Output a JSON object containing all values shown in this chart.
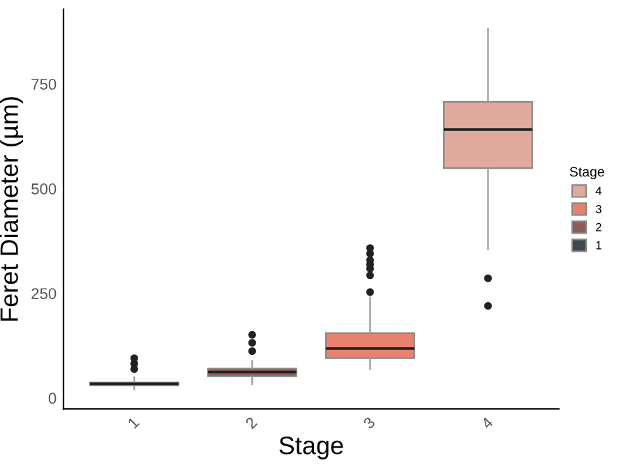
{
  "chart_data": {
    "type": "box",
    "xlabel": "Stage",
    "ylabel": "Feret Diameter (µm)",
    "legend_title": "Stage",
    "legend": "right",
    "grid": false,
    "categories": [
      "1",
      "2",
      "3",
      "4"
    ],
    "series": [
      {
        "name": "1",
        "color": "#3d4b4f",
        "boxes": [
          {
            "low": 20,
            "q1": 30,
            "median": 34,
            "q3": 37,
            "high": 50,
            "outliers": [
              69,
              82,
              95
            ]
          },
          null,
          null,
          null
        ]
      },
      {
        "name": "2",
        "color": "#8c5b5a",
        "boxes": [
          null,
          {
            "low": 33,
            "q1": 52,
            "median": 62,
            "q3": 70,
            "high": 89,
            "outliers": [
              112,
              132,
              151
            ]
          },
          null,
          null
        ]
      },
      {
        "name": "3",
        "color": "#e8826f",
        "boxes": [
          null,
          null,
          {
            "low": 69,
            "q1": 95,
            "median": 118,
            "q3": 155,
            "high": 240,
            "outliers": [
              253,
              293,
              309,
              319,
              329,
              345,
              358
            ]
          },
          null
        ]
      },
      {
        "name": "4",
        "color": "#e0aa9c",
        "boxes": [
          null,
          null,
          null,
          {
            "low": 355,
            "q1": 549,
            "median": 641,
            "q3": 707,
            "high": 882,
            "outliers": [
              220,
              286
            ]
          }
        ]
      }
    ],
    "ylim": [
      -26,
      928
    ],
    "yticks": [
      0,
      250,
      500,
      750
    ]
  }
}
